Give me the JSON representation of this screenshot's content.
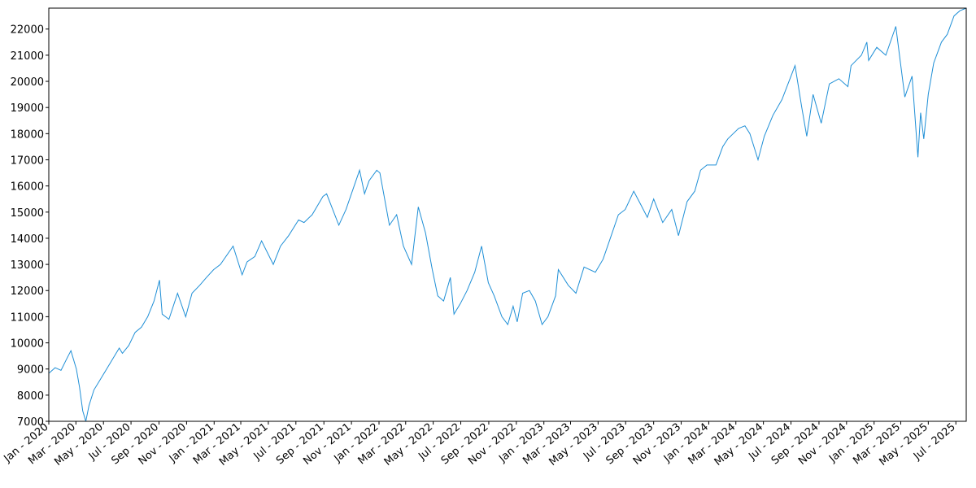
{
  "chart_data": {
    "type": "line",
    "title": "",
    "xlabel": "",
    "ylabel": "",
    "grid": false,
    "legend": "none",
    "xlim": [
      "2020-01-01",
      "2025-07-24"
    ],
    "ylim": [
      7000,
      22800
    ],
    "y_ticks": [
      7000,
      8000,
      9000,
      10000,
      11000,
      12000,
      13000,
      14000,
      15000,
      16000,
      17000,
      18000,
      19000,
      20000,
      21000,
      22000
    ],
    "x_ticks": [
      {
        "date": "2020-01-01",
        "label": "Jan - 2020"
      },
      {
        "date": "2020-03-01",
        "label": "Mar - 2020"
      },
      {
        "date": "2020-05-01",
        "label": "May - 2020"
      },
      {
        "date": "2020-07-01",
        "label": "Jul - 2020"
      },
      {
        "date": "2020-09-01",
        "label": "Sep - 2020"
      },
      {
        "date": "2020-11-01",
        "label": "Nov - 2020"
      },
      {
        "date": "2021-01-01",
        "label": "Jan - 2021"
      },
      {
        "date": "2021-03-01",
        "label": "Mar - 2021"
      },
      {
        "date": "2021-05-01",
        "label": "May - 2021"
      },
      {
        "date": "2021-07-01",
        "label": "Jul - 2021"
      },
      {
        "date": "2021-09-01",
        "label": "Sep - 2021"
      },
      {
        "date": "2021-11-01",
        "label": "Nov - 2021"
      },
      {
        "date": "2022-01-01",
        "label": "Jan - 2022"
      },
      {
        "date": "2022-03-01",
        "label": "Mar - 2022"
      },
      {
        "date": "2022-05-01",
        "label": "May - 2022"
      },
      {
        "date": "2022-07-01",
        "label": "Jul - 2022"
      },
      {
        "date": "2022-09-01",
        "label": "Sep - 2022"
      },
      {
        "date": "2022-11-01",
        "label": "Nov - 2022"
      },
      {
        "date": "2023-01-01",
        "label": "Jan - 2023"
      },
      {
        "date": "2023-03-01",
        "label": "Mar - 2023"
      },
      {
        "date": "2023-05-01",
        "label": "May - 2023"
      },
      {
        "date": "2023-07-01",
        "label": "Jul - 2023"
      },
      {
        "date": "2023-09-01",
        "label": "Sep - 2023"
      },
      {
        "date": "2023-11-01",
        "label": "Nov - 2023"
      },
      {
        "date": "2024-01-01",
        "label": "Jan - 2024"
      },
      {
        "date": "2024-03-01",
        "label": "Mar - 2024"
      },
      {
        "date": "2024-05-01",
        "label": "May - 2024"
      },
      {
        "date": "2024-07-01",
        "label": "Jul - 2024"
      },
      {
        "date": "2024-09-01",
        "label": "Sep - 2024"
      },
      {
        "date": "2024-11-01",
        "label": "Nov - 2024"
      },
      {
        "date": "2025-01-01",
        "label": "Jan - 2025"
      },
      {
        "date": "2025-03-01",
        "label": "Mar - 2025"
      },
      {
        "date": "2025-05-01",
        "label": "May - 2025"
      },
      {
        "date": "2025-07-01",
        "label": "Jul - 2025"
      }
    ],
    "series": [
      {
        "color": "#1f8fd6",
        "points": [
          [
            "2020-01-02",
            8850
          ],
          [
            "2020-01-15",
            9050
          ],
          [
            "2020-01-28",
            8950
          ],
          [
            "2020-02-10",
            9400
          ],
          [
            "2020-02-19",
            9700
          ],
          [
            "2020-03-02",
            9000
          ],
          [
            "2020-03-09",
            8300
          ],
          [
            "2020-03-16",
            7400
          ],
          [
            "2020-03-23",
            7000
          ],
          [
            "2020-03-30",
            7600
          ],
          [
            "2020-04-10",
            8200
          ],
          [
            "2020-04-24",
            8600
          ],
          [
            "2020-05-08",
            9000
          ],
          [
            "2020-05-22",
            9400
          ],
          [
            "2020-06-05",
            9800
          ],
          [
            "2020-06-12",
            9600
          ],
          [
            "2020-06-26",
            9900
          ],
          [
            "2020-07-10",
            10400
          ],
          [
            "2020-07-24",
            10600
          ],
          [
            "2020-08-07",
            11000
          ],
          [
            "2020-08-21",
            11600
          ],
          [
            "2020-09-02",
            12400
          ],
          [
            "2020-09-08",
            11100
          ],
          [
            "2020-09-23",
            10900
          ],
          [
            "2020-10-12",
            11900
          ],
          [
            "2020-10-30",
            11000
          ],
          [
            "2020-11-13",
            11900
          ],
          [
            "2020-11-30",
            12200
          ],
          [
            "2020-12-15",
            12500
          ],
          [
            "2020-12-31",
            12800
          ],
          [
            "2021-01-15",
            13000
          ],
          [
            "2021-02-12",
            13700
          ],
          [
            "2021-03-04",
            12600
          ],
          [
            "2021-03-15",
            13100
          ],
          [
            "2021-04-01",
            13300
          ],
          [
            "2021-04-16",
            13900
          ],
          [
            "2021-05-12",
            13000
          ],
          [
            "2021-05-28",
            13700
          ],
          [
            "2021-06-15",
            14100
          ],
          [
            "2021-07-07",
            14700
          ],
          [
            "2021-07-19",
            14600
          ],
          [
            "2021-08-06",
            14900
          ],
          [
            "2021-08-30",
            15600
          ],
          [
            "2021-09-07",
            15700
          ],
          [
            "2021-10-04",
            14500
          ],
          [
            "2021-10-20",
            15100
          ],
          [
            "2021-11-05",
            15900
          ],
          [
            "2021-11-19",
            16600
          ],
          [
            "2021-11-30",
            15700
          ],
          [
            "2021-12-10",
            16200
          ],
          [
            "2021-12-27",
            16600
          ],
          [
            "2022-01-03",
            16500
          ],
          [
            "2022-01-24",
            14500
          ],
          [
            "2022-02-09",
            14900
          ],
          [
            "2022-02-24",
            13700
          ],
          [
            "2022-03-14",
            13000
          ],
          [
            "2022-03-29",
            15200
          ],
          [
            "2022-04-14",
            14200
          ],
          [
            "2022-04-29",
            12800
          ],
          [
            "2022-05-11",
            11800
          ],
          [
            "2022-05-24",
            11600
          ],
          [
            "2022-06-08",
            12500
          ],
          [
            "2022-06-16",
            11100
          ],
          [
            "2022-06-30",
            11500
          ],
          [
            "2022-07-15",
            12000
          ],
          [
            "2022-08-01",
            12700
          ],
          [
            "2022-08-16",
            13700
          ],
          [
            "2022-08-31",
            12300
          ],
          [
            "2022-09-13",
            11800
          ],
          [
            "2022-09-30",
            11000
          ],
          [
            "2022-10-13",
            10700
          ],
          [
            "2022-10-25",
            11400
          ],
          [
            "2022-11-03",
            10800
          ],
          [
            "2022-11-15",
            11900
          ],
          [
            "2022-11-30",
            12000
          ],
          [
            "2022-12-13",
            11600
          ],
          [
            "2022-12-28",
            10700
          ],
          [
            "2023-01-10",
            11000
          ],
          [
            "2023-01-27",
            11800
          ],
          [
            "2023-02-02",
            12800
          ],
          [
            "2023-02-24",
            12200
          ],
          [
            "2023-03-13",
            11900
          ],
          [
            "2023-03-31",
            12900
          ],
          [
            "2023-04-25",
            12700
          ],
          [
            "2023-05-12",
            13200
          ],
          [
            "2023-05-30",
            14100
          ],
          [
            "2023-06-15",
            14900
          ],
          [
            "2023-06-30",
            15100
          ],
          [
            "2023-07-19",
            15800
          ],
          [
            "2023-08-03",
            15300
          ],
          [
            "2023-08-18",
            14800
          ],
          [
            "2023-09-01",
            15500
          ],
          [
            "2023-09-21",
            14600
          ],
          [
            "2023-10-11",
            15100
          ],
          [
            "2023-10-26",
            14100
          ],
          [
            "2023-11-14",
            15400
          ],
          [
            "2023-12-01",
            15800
          ],
          [
            "2023-12-14",
            16600
          ],
          [
            "2023-12-28",
            16800
          ],
          [
            "2024-01-17",
            16800
          ],
          [
            "2024-02-01",
            17500
          ],
          [
            "2024-02-12",
            17800
          ],
          [
            "2024-03-07",
            18200
          ],
          [
            "2024-03-21",
            18300
          ],
          [
            "2024-04-01",
            18000
          ],
          [
            "2024-04-19",
            17000
          ],
          [
            "2024-05-03",
            17900
          ],
          [
            "2024-05-22",
            18700
          ],
          [
            "2024-06-11",
            19300
          ],
          [
            "2024-07-10",
            20600
          ],
          [
            "2024-07-25",
            19000
          ],
          [
            "2024-08-05",
            17900
          ],
          [
            "2024-08-19",
            19500
          ],
          [
            "2024-09-06",
            18400
          ],
          [
            "2024-09-24",
            19900
          ],
          [
            "2024-10-15",
            20100
          ],
          [
            "2024-11-04",
            19800
          ],
          [
            "2024-11-11",
            20600
          ],
          [
            "2024-12-04",
            21000
          ],
          [
            "2024-12-16",
            21500
          ],
          [
            "2024-12-20",
            20800
          ],
          [
            "2025-01-07",
            21300
          ],
          [
            "2025-01-27",
            21000
          ],
          [
            "2025-02-18",
            22100
          ],
          [
            "2025-03-10",
            19400
          ],
          [
            "2025-03-26",
            20200
          ],
          [
            "2025-04-08",
            17100
          ],
          [
            "2025-04-14",
            18800
          ],
          [
            "2025-04-21",
            17800
          ],
          [
            "2025-05-01",
            19500
          ],
          [
            "2025-05-13",
            20700
          ],
          [
            "2025-05-30",
            21500
          ],
          [
            "2025-06-12",
            21800
          ],
          [
            "2025-06-27",
            22500
          ],
          [
            "2025-07-10",
            22700
          ],
          [
            "2025-07-24",
            23000
          ]
        ]
      }
    ]
  }
}
